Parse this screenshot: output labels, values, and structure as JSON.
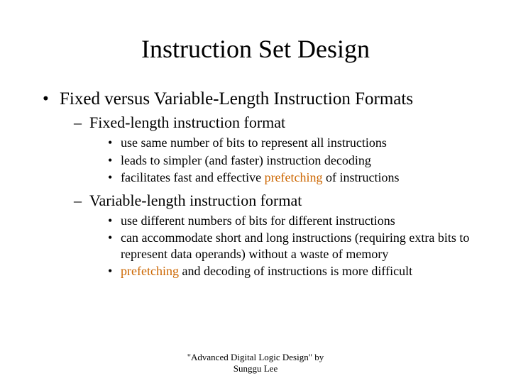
{
  "colors": {
    "text": "#000000",
    "background": "#ffffff",
    "highlight": "#cc6600"
  },
  "typography": {
    "family": "Times New Roman",
    "title_size_pt": 36,
    "lvl1_size_pt": 25,
    "lvl2_size_pt": 22,
    "lvl3_size_pt": 18,
    "footer_size_pt": 13
  },
  "title": "Instruction Set Design",
  "lvl1": {
    "text": "Fixed versus Variable-Length Instruction Formats",
    "children": [
      {
        "text": "Fixed-length instruction format",
        "bullets": [
          {
            "pre": "use same number of bits to represent all instructions",
            "hl": "",
            "post": ""
          },
          {
            "pre": "leads to simpler (and faster) instruction decoding",
            "hl": "",
            "post": ""
          },
          {
            "pre": "facilitates fast and effective ",
            "hl": "prefetching",
            "post": " of instructions"
          }
        ]
      },
      {
        "text": "Variable-length instruction format",
        "bullets": [
          {
            "pre": "use different numbers of bits for different instructions",
            "hl": "",
            "post": ""
          },
          {
            "pre": "can accommodate short and long instructions (requiring extra bits to represent data operands) without a waste of memory",
            "hl": "",
            "post": ""
          },
          {
            "pre": "",
            "hl": "prefetching",
            "post": " and decoding of instructions is more difficult"
          }
        ]
      }
    ]
  },
  "footer": {
    "line1": "\"Advanced Digital Logic Design\" by",
    "line2": "Sunggu Lee"
  }
}
